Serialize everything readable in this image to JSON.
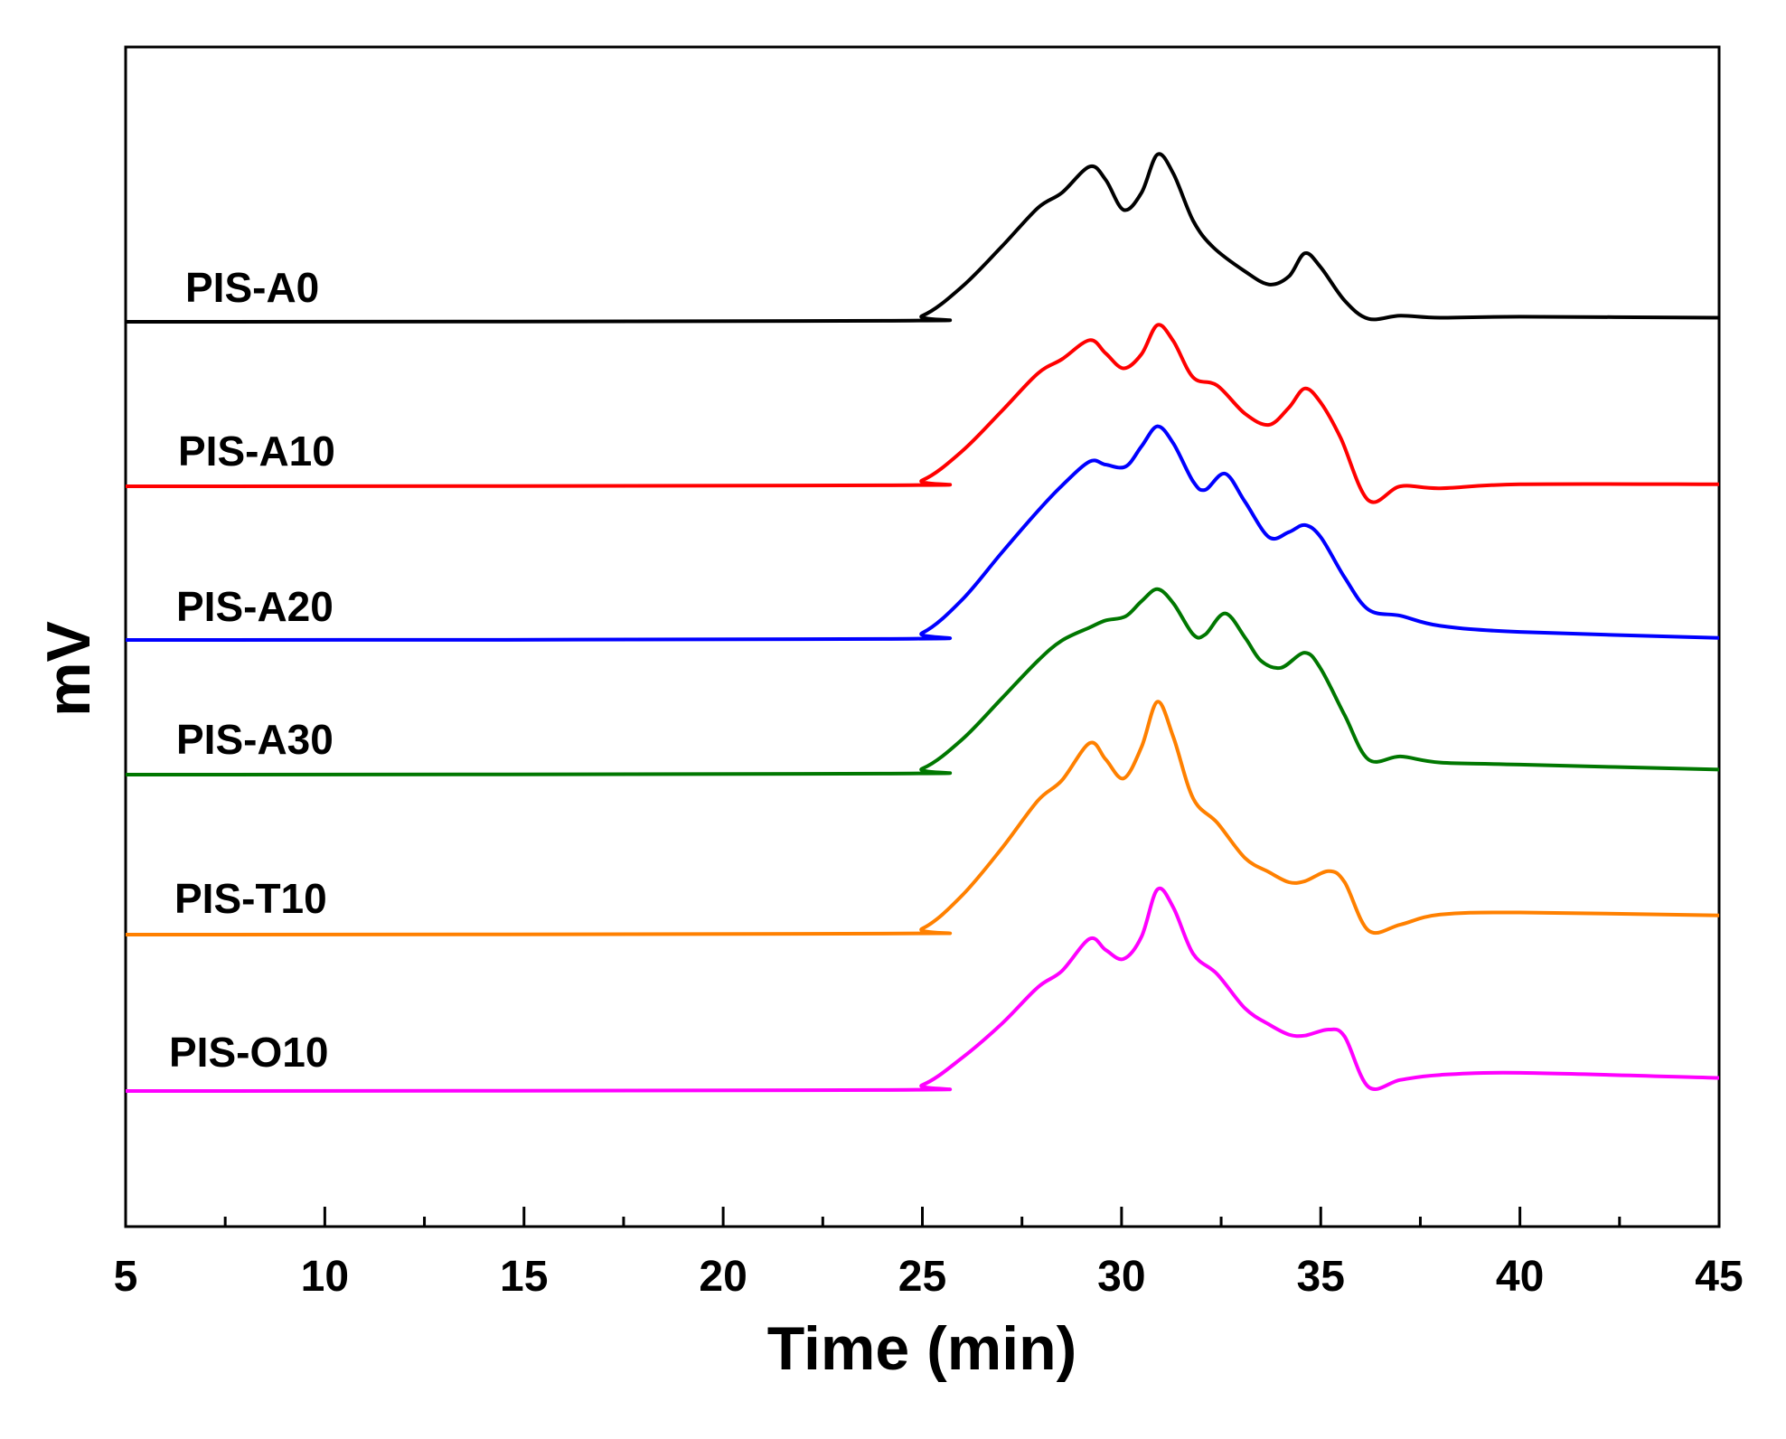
{
  "chart_data": {
    "type": "line",
    "title": "",
    "xlabel": "Time (min)",
    "ylabel": "mV",
    "xlim": [
      5,
      45
    ],
    "xticks": [
      5,
      10,
      15,
      20,
      25,
      30,
      35,
      40,
      45
    ],
    "xtick_labels": [
      "5",
      "10",
      "15",
      "20",
      "25",
      "30",
      "35",
      "40",
      "45"
    ],
    "y_ticks_shown": false,
    "grid": false,
    "legend": "inline labels left of each trace",
    "series": [
      {
        "name": "PIS-A0",
        "label": "PIS-A0",
        "color": "#000000",
        "points": [
          [
            5,
            0
          ],
          [
            24,
            0.1
          ],
          [
            25,
            0.6
          ],
          [
            26,
            3.5
          ],
          [
            27,
            7.5
          ],
          [
            27.9,
            11.3
          ],
          [
            28.5,
            12.8
          ],
          [
            29.2,
            15.4
          ],
          [
            29.6,
            14.1
          ],
          [
            30.05,
            11.1
          ],
          [
            30.5,
            12.8
          ],
          [
            30.9,
            16.6
          ],
          [
            31.3,
            14.7
          ],
          [
            31.8,
            10.0
          ],
          [
            32.3,
            7.4
          ],
          [
            33.1,
            5.0
          ],
          [
            33.7,
            3.7
          ],
          [
            34.2,
            4.5
          ],
          [
            34.6,
            6.8
          ],
          [
            35,
            5.4
          ],
          [
            35.6,
            2.1
          ],
          [
            36.2,
            0.3
          ],
          [
            37,
            0.6
          ],
          [
            38,
            0.4
          ],
          [
            40,
            0.5
          ],
          [
            45,
            0.4
          ]
        ]
      },
      {
        "name": "PIS-A10",
        "label": "PIS-A10",
        "color": "#ff0000",
        "points": [
          [
            5,
            0
          ],
          [
            24,
            0.1
          ],
          [
            25,
            0.6
          ],
          [
            26,
            3.5
          ],
          [
            27,
            7.5
          ],
          [
            27.9,
            11.2
          ],
          [
            28.5,
            12.6
          ],
          [
            29.2,
            14.5
          ],
          [
            29.6,
            13.2
          ],
          [
            30.05,
            11.7
          ],
          [
            30.5,
            13.1
          ],
          [
            30.9,
            16.0
          ],
          [
            31.3,
            14.4
          ],
          [
            31.8,
            10.8
          ],
          [
            32.4,
            10.0
          ],
          [
            33.1,
            7.2
          ],
          [
            33.7,
            6.1
          ],
          [
            34.2,
            7.8
          ],
          [
            34.6,
            9.7
          ],
          [
            35,
            8.3
          ],
          [
            35.5,
            4.8
          ],
          [
            36.2,
            -1.4
          ],
          [
            37,
            0.0
          ],
          [
            38,
            -0.2
          ],
          [
            40,
            0.2
          ],
          [
            45,
            0.2
          ]
        ]
      },
      {
        "name": "PIS-A20",
        "label": "PIS-A20",
        "color": "#0000ff",
        "points": [
          [
            5,
            0
          ],
          [
            24,
            0.1
          ],
          [
            25,
            0.7
          ],
          [
            26,
            4.0
          ],
          [
            27,
            8.7
          ],
          [
            27.9,
            12.8
          ],
          [
            28.5,
            15.3
          ],
          [
            29.2,
            17.7
          ],
          [
            29.6,
            17.4
          ],
          [
            30.1,
            17.2
          ],
          [
            30.5,
            19.2
          ],
          [
            30.9,
            21.2
          ],
          [
            31.3,
            19.5
          ],
          [
            31.8,
            15.7
          ],
          [
            32.1,
            14.9
          ],
          [
            32.6,
            16.5
          ],
          [
            33.1,
            13.7
          ],
          [
            33.7,
            10.2
          ],
          [
            34.2,
            10.7
          ],
          [
            34.6,
            11.4
          ],
          [
            35,
            10.2
          ],
          [
            35.6,
            6.2
          ],
          [
            36.2,
            3.0
          ],
          [
            37,
            2.4
          ],
          [
            38,
            1.4
          ],
          [
            40,
            0.8
          ],
          [
            45,
            0.2
          ]
        ]
      },
      {
        "name": "PIS-A30",
        "label": "PIS-A30",
        "color": "#007700",
        "points": [
          [
            5,
            0
          ],
          [
            24,
            0.1
          ],
          [
            25,
            0.6
          ],
          [
            26,
            3.5
          ],
          [
            27,
            7.6
          ],
          [
            27.9,
            11.3
          ],
          [
            28.5,
            13.3
          ],
          [
            29.2,
            14.6
          ],
          [
            29.6,
            15.3
          ],
          [
            30.1,
            15.7
          ],
          [
            30.5,
            17.2
          ],
          [
            30.9,
            18.4
          ],
          [
            31.3,
            17.0
          ],
          [
            31.8,
            13.9
          ],
          [
            32.1,
            13.9
          ],
          [
            32.6,
            16.0
          ],
          [
            33.1,
            13.6
          ],
          [
            33.5,
            11.3
          ],
          [
            34,
            10.6
          ],
          [
            34.6,
            12.1
          ],
          [
            35,
            10.5
          ],
          [
            35.6,
            5.9
          ],
          [
            36.2,
            1.5
          ],
          [
            37,
            1.8
          ],
          [
            38,
            1.2
          ],
          [
            40,
            1.0
          ],
          [
            45,
            0.5
          ]
        ]
      },
      {
        "name": "PIS-T10",
        "label": "PIS-T10",
        "color": "#ff8000",
        "points": [
          [
            5,
            0
          ],
          [
            24,
            0.1
          ],
          [
            25,
            0.6
          ],
          [
            26,
            3.9
          ],
          [
            27,
            8.6
          ],
          [
            27.9,
            13.3
          ],
          [
            28.5,
            15.3
          ],
          [
            29.2,
            19.0
          ],
          [
            29.6,
            17.4
          ],
          [
            30.05,
            15.5
          ],
          [
            30.5,
            18.6
          ],
          [
            30.9,
            23.1
          ],
          [
            31.3,
            19.6
          ],
          [
            31.8,
            13.5
          ],
          [
            32.4,
            11.1
          ],
          [
            33.1,
            7.6
          ],
          [
            33.7,
            6.2
          ],
          [
            34.2,
            5.2
          ],
          [
            34.6,
            5.3
          ],
          [
            35.2,
            6.3
          ],
          [
            35.6,
            5.2
          ],
          [
            36.2,
            0.4
          ],
          [
            37,
            1.0
          ],
          [
            38,
            2.0
          ],
          [
            40,
            2.2
          ],
          [
            45,
            1.9
          ]
        ]
      },
      {
        "name": "PIS-O10",
        "label": "PIS-O10",
        "color": "#ff00ff",
        "points": [
          [
            5,
            0
          ],
          [
            24,
            0.1
          ],
          [
            25,
            0.6
          ],
          [
            26,
            3.3
          ],
          [
            27,
            6.7
          ],
          [
            27.9,
            10.3
          ],
          [
            28.5,
            11.9
          ],
          [
            29.2,
            15.1
          ],
          [
            29.6,
            14.0
          ],
          [
            30.05,
            13.1
          ],
          [
            30.5,
            15.3
          ],
          [
            30.9,
            20.0
          ],
          [
            31.3,
            18.2
          ],
          [
            31.8,
            13.6
          ],
          [
            32.4,
            11.6
          ],
          [
            33.1,
            8.2
          ],
          [
            33.7,
            6.6
          ],
          [
            34.2,
            5.6
          ],
          [
            34.6,
            5.5
          ],
          [
            35.2,
            6.1
          ],
          [
            35.6,
            5.4
          ],
          [
            36.2,
            0.4
          ],
          [
            37,
            1.1
          ],
          [
            38,
            1.6
          ],
          [
            40,
            1.8
          ],
          [
            45,
            1.3
          ]
        ]
      }
    ]
  }
}
